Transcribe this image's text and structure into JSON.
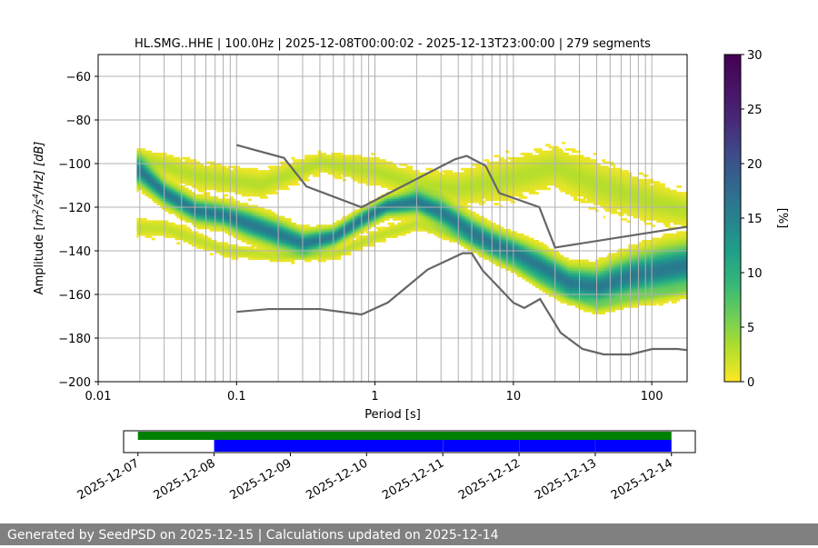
{
  "chart_data": {
    "type": "heatmap",
    "title": "HL.SMG..HHE | 100.0Hz | 2025-12-08T00:00:02 - 2025-12-13T23:00:00 | 279 segments",
    "xlabel": "Period [s]",
    "ylabel_parts": {
      "pre": "Amplitude [",
      "m": "m",
      "e2": "2",
      "s": "/s",
      "e4": "4",
      "post": "/Hz] [dB]"
    },
    "x_scale": "log",
    "xlim": [
      0.01,
      180
    ],
    "ylim": [
      -200,
      -50
    ],
    "x_ticks": [
      {
        "value": 0.01,
        "label": "0.01"
      },
      {
        "value": 0.1,
        "label": "0.1"
      },
      {
        "value": 1,
        "label": "1"
      },
      {
        "value": 10,
        "label": "10"
      },
      {
        "value": 100,
        "label": "100"
      }
    ],
    "y_ticks": [
      {
        "value": -60,
        "label": "−60"
      },
      {
        "value": -80,
        "label": "−80"
      },
      {
        "value": -100,
        "label": "−100"
      },
      {
        "value": -120,
        "label": "−120"
      },
      {
        "value": -140,
        "label": "−140"
      },
      {
        "value": -160,
        "label": "−160"
      },
      {
        "value": -180,
        "label": "−180"
      },
      {
        "value": -200,
        "label": "−200"
      }
    ],
    "grid_x_periods": [
      0.02,
      0.03,
      0.04,
      0.05,
      0.06,
      0.07,
      0.08,
      0.09,
      0.1,
      0.2,
      0.3,
      0.4,
      0.5,
      0.6,
      0.7,
      0.8,
      0.9,
      1,
      2,
      3,
      4,
      5,
      6,
      7,
      8,
      9,
      10,
      20,
      30,
      40,
      50,
      60,
      70,
      80,
      90,
      100
    ],
    "grid_y": [
      -60,
      -80,
      -100,
      -120,
      -140,
      -160,
      -180
    ],
    "density_bands": [
      {
        "note": "main_band",
        "points": [
          [
            0.02,
            -104,
            6
          ],
          [
            0.03,
            -114,
            5
          ],
          [
            0.05,
            -122,
            5
          ],
          [
            0.08,
            -124,
            5
          ],
          [
            0.12,
            -128,
            6
          ],
          [
            0.2,
            -133,
            6
          ],
          [
            0.3,
            -137,
            5
          ],
          [
            0.5,
            -134,
            4
          ],
          [
            0.8,
            -126,
            4
          ],
          [
            1.2,
            -120,
            4
          ],
          [
            2,
            -118,
            5
          ],
          [
            3,
            -123,
            6
          ],
          [
            5,
            -132,
            6
          ],
          [
            7,
            -137,
            6
          ],
          [
            10,
            -141,
            6
          ],
          [
            15,
            -147,
            7
          ],
          [
            25,
            -155,
            7
          ],
          [
            40,
            -157,
            8
          ],
          [
            70,
            -152,
            9
          ],
          [
            120,
            -149,
            10
          ],
          [
            180,
            -147,
            10
          ]
        ]
      },
      {
        "note": "upper_spread",
        "points": [
          [
            0.02,
            -98,
            6
          ],
          [
            0.05,
            -106,
            8
          ],
          [
            0.15,
            -110,
            8
          ],
          [
            0.4,
            -100,
            6
          ],
          [
            1,
            -104,
            8
          ],
          [
            2,
            -110,
            8
          ],
          [
            4,
            -112,
            10
          ],
          [
            8,
            -108,
            12
          ],
          [
            20,
            -102,
            12
          ],
          [
            40,
            -110,
            14
          ],
          [
            100,
            -118,
            12
          ],
          [
            180,
            -122,
            10
          ]
        ]
      },
      {
        "note": "lower_spread",
        "points": [
          [
            0.03,
            -130,
            6
          ],
          [
            0.08,
            -140,
            5
          ],
          [
            0.2,
            -143,
            4
          ],
          [
            0.5,
            -142,
            4
          ],
          [
            1,
            -134,
            5
          ],
          [
            2,
            -128,
            5
          ],
          [
            5,
            -136,
            5
          ],
          [
            10,
            -147,
            5
          ],
          [
            20,
            -158,
            5
          ],
          [
            40,
            -166,
            4
          ],
          [
            80,
            -162,
            4
          ],
          [
            180,
            -158,
            4
          ]
        ]
      }
    ],
    "nhnm": [
      [
        0.1,
        -91.5
      ],
      [
        0.22,
        -97.4
      ],
      [
        0.32,
        -110.5
      ],
      [
        0.8,
        -120
      ],
      [
        3.8,
        -98
      ],
      [
        4.6,
        -96.5
      ],
      [
        6.3,
        -101
      ],
      [
        7.9,
        -113.5
      ],
      [
        15.4,
        -120
      ],
      [
        20,
        -138.5
      ],
      [
        354.8,
        -126
      ]
    ],
    "nlnm": [
      [
        0.1,
        -168
      ],
      [
        0.17,
        -166.7
      ],
      [
        0.4,
        -166.7
      ],
      [
        0.8,
        -169.2
      ],
      [
        1.24,
        -163.7
      ],
      [
        2.4,
        -148.6
      ],
      [
        4.3,
        -141.1
      ],
      [
        5,
        -141.1
      ],
      [
        6,
        -149
      ],
      [
        10,
        -163.8
      ],
      [
        12,
        -166.2
      ],
      [
        15.6,
        -162.1
      ],
      [
        21.9,
        -177.5
      ],
      [
        31.6,
        -185
      ],
      [
        45,
        -187.5
      ],
      [
        70,
        -187.5
      ],
      [
        101,
        -185
      ],
      [
        154,
        -185
      ],
      [
        178,
        -185.5
      ]
    ],
    "colorbar": {
      "label": "[%]",
      "range": [
        0,
        30
      ],
      "ticks": [
        {
          "value": 0,
          "label": "0"
        },
        {
          "value": 5,
          "label": "5"
        },
        {
          "value": 10,
          "label": "10"
        },
        {
          "value": 15,
          "label": "15"
        },
        {
          "value": 20,
          "label": "20"
        },
        {
          "value": 25,
          "label": "25"
        },
        {
          "value": 30,
          "label": "30"
        }
      ]
    },
    "timeline": {
      "range": [
        "2025-12-06T19:30",
        "2025-12-14T07:30"
      ],
      "data_available": {
        "start": "2025-12-07T00:00",
        "end": "2025-12-14T00:00",
        "color": "#008000"
      },
      "psd_used": [
        {
          "start": "2025-12-08T00:00",
          "end": "2025-12-11T00:00",
          "color": "#0000ff"
        },
        {
          "start": "2025-12-11T00:02",
          "end": "2025-12-12T00:00",
          "color": "#0000ff"
        },
        {
          "start": "2025-12-12T00:02",
          "end": "2025-12-13T00:00",
          "color": "#0000ff"
        },
        {
          "start": "2025-12-13T00:02",
          "end": "2025-12-14T00:00",
          "color": "#0000ff"
        }
      ],
      "date_ticks": [
        "2025-12-07",
        "2025-12-08",
        "2025-12-09",
        "2025-12-10",
        "2025-12-11",
        "2025-12-12",
        "2025-12-13",
        "2025-12-14"
      ]
    },
    "colors": {
      "model_line": "#666666",
      "grid": "#b0b0b0"
    }
  },
  "footer": "Generated by SeedPSD on 2025-12-15 | Calculations updated on 2025-12-14"
}
